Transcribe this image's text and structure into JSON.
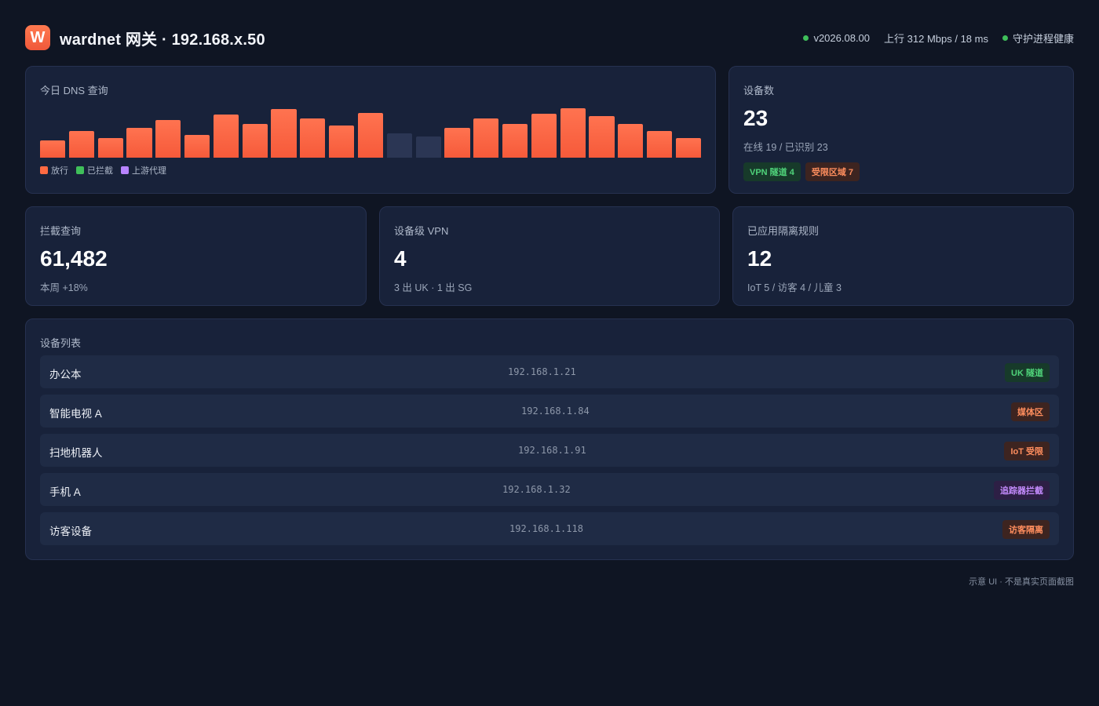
{
  "header": {
    "logo_letter": "W",
    "title": "wardnet 网关 · 192.168.x.50",
    "version": "v2026.08.00",
    "uplink": "上行 312 Mbps / 18 ms",
    "daemon": "守护进程健康"
  },
  "dns": {
    "label": "今日 DNS 查询",
    "legend": [
      "放行",
      "已拦截",
      "上游代理"
    ],
    "colors": {
      "allowed": "#ff6a42",
      "blocked": "#3fbf5a",
      "proxy": "#b884ff",
      "dim": "#2b3654"
    }
  },
  "chart_data": {
    "type": "bar",
    "series": [
      {
        "name": "放行",
        "values": [
          0.34,
          0.52,
          0.38,
          0.58,
          0.74,
          0.45,
          0.85,
          0.66,
          0.95,
          0.77,
          0.63,
          0.87,
          0.48,
          0.42,
          0.58,
          0.77,
          0.66,
          0.86,
          0.97,
          0.81,
          0.66,
          0.52,
          0.38
        ]
      }
    ],
    "dim_indices": [
      12,
      13
    ]
  },
  "devices": {
    "label": "设备数",
    "count": "23",
    "sub": "在线 19 / 已识别 23",
    "tags": [
      "VPN 隧道 4",
      "受限区域 7"
    ]
  },
  "blocked": {
    "label": "拦截查询",
    "value": "61,482",
    "sub": "本周 +18%"
  },
  "vpn": {
    "label": "设备级 VPN",
    "value": "4",
    "sub": "3 出 UK · 1 出 SG"
  },
  "isolation": {
    "label": "已应用隔离规则",
    "value": "12",
    "sub": "IoT 5 / 访客 4 / 儿童 3"
  },
  "device_list": {
    "label": "设备列表",
    "rows": [
      {
        "name": "办公本",
        "ip": "192.168.1.21",
        "badge": "UK 隧道",
        "tone": "green"
      },
      {
        "name": "智能电视 A",
        "ip": "192.168.1.84",
        "badge": "媒体区",
        "tone": "orange"
      },
      {
        "name": "扫地机器人",
        "ip": "192.168.1.91",
        "badge": "IoT 受限",
        "tone": "orange"
      },
      {
        "name": "手机 A",
        "ip": "192.168.1.32",
        "badge": "追踪器拦截",
        "tone": "purple"
      },
      {
        "name": "访客设备",
        "ip": "192.168.1.118",
        "badge": "访客隔离",
        "tone": "orange"
      }
    ]
  },
  "footer": "示意 UI · 不是真实页面截图"
}
